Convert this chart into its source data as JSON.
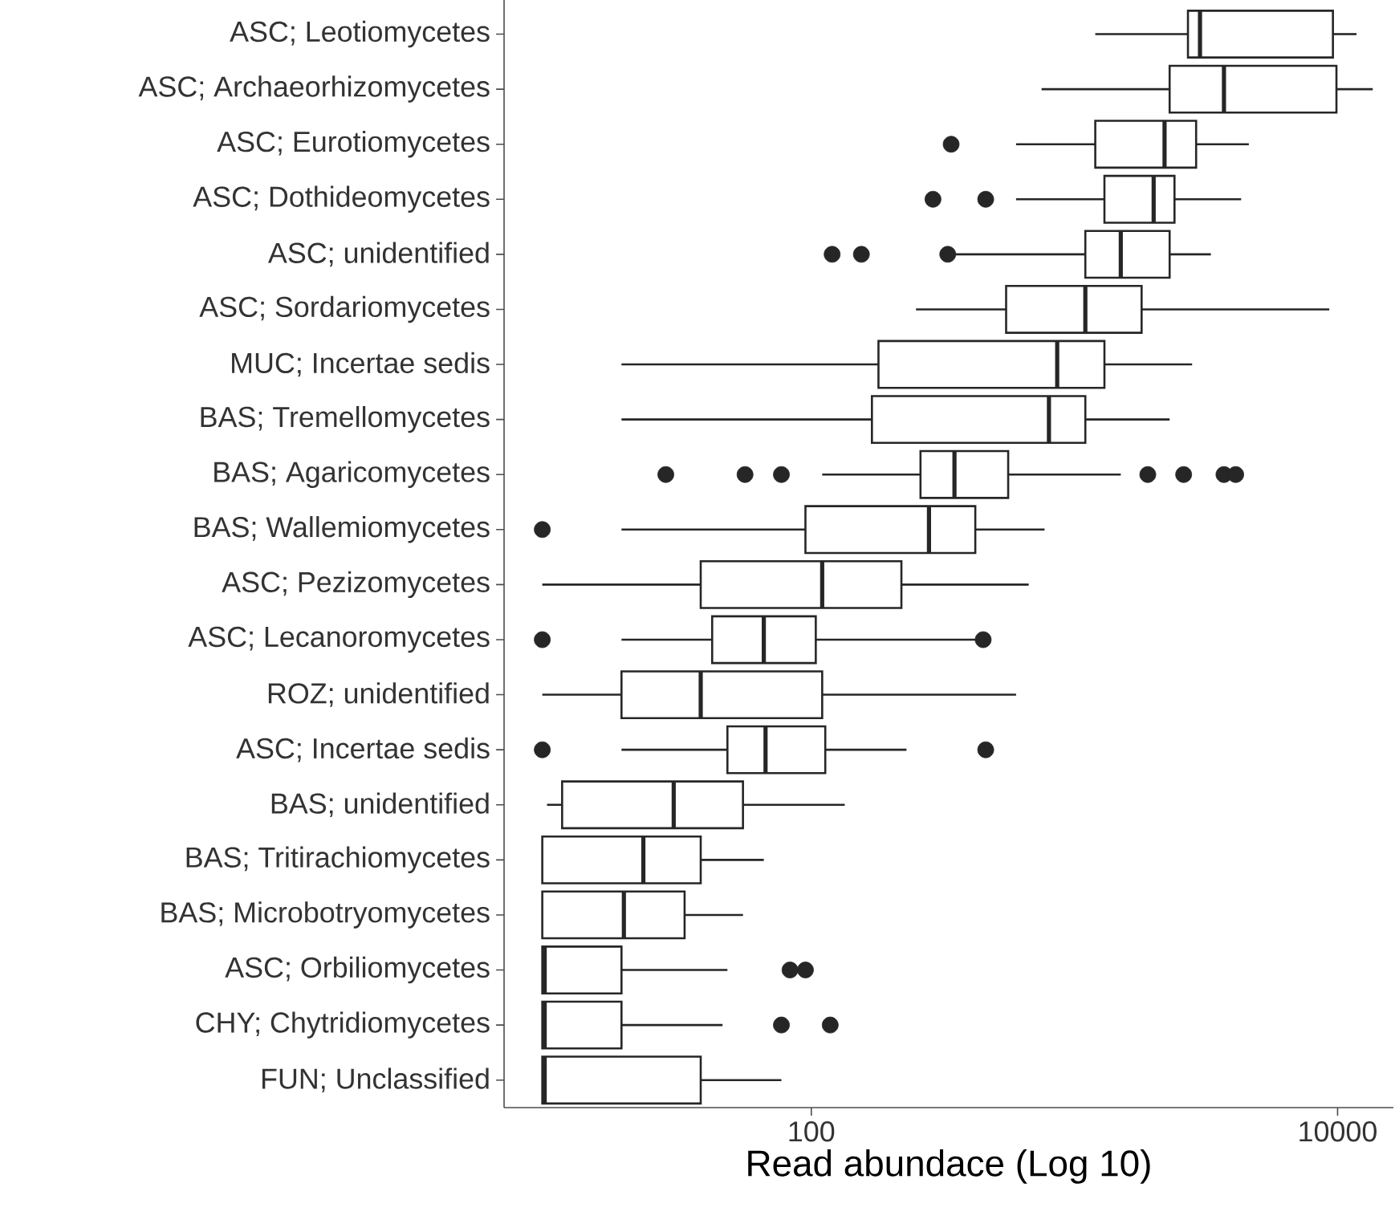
{
  "chart_data": {
    "type": "box",
    "orientation": "horizontal",
    "log": "x",
    "xlabel": "Read abundace (Log 10)",
    "xlim": [
      6.8,
      16300
    ],
    "xticks": [
      100,
      10000
    ],
    "categories": [
      "ASC; Leotiomycetes",
      "ASC; Archaeorhizomycetes",
      "ASC; Eurotiomycetes",
      "ASC; Dothideomycetes",
      "ASC; unidentified",
      "ASC; Sordariomycetes",
      "MUC; Incertae sedis",
      "BAS; Tremellomycetes",
      "BAS; Agaricomycetes",
      "BAS; Wallemiomycetes",
      "ASC; Pezizomycetes",
      "ASC; Lecanoromycetes",
      "ROZ; unidentified",
      "ASC; Incertae sedis",
      "BAS; unidentified",
      "BAS; Tritirachiomycetes",
      "BAS; Microbotryomycetes",
      "ASC; Orbiliomycetes",
      "CHY; Chytridiomycetes",
      "FUN; Unclassified"
    ],
    "boxes": [
      {
        "low": 1200,
        "q1": 2700,
        "median": 3000,
        "q3": 9600,
        "high": 11800
      },
      {
        "low": 750,
        "q1": 2300,
        "median": 3700,
        "q3": 9900,
        "high": 13600
      },
      {
        "low": 600,
        "q1": 1200,
        "median": 2200,
        "q3": 2900,
        "high": 4600,
        "outliers": [
          340
        ]
      },
      {
        "low": 600,
        "q1": 1300,
        "median": 2000,
        "q3": 2400,
        "high": 4300,
        "outliers": [
          290,
          460
        ]
      },
      {
        "low": 350,
        "q1": 1100,
        "median": 1500,
        "q3": 2300,
        "high": 3300,
        "outliers": [
          120,
          155,
          330
        ]
      },
      {
        "low": 250,
        "q1": 550,
        "median": 1100,
        "q3": 1800,
        "high": 9300
      },
      {
        "low": 19,
        "q1": 180,
        "median": 860,
        "q3": 1300,
        "high": 2800
      },
      {
        "low": 19,
        "q1": 170,
        "median": 800,
        "q3": 1100,
        "high": 2300
      },
      {
        "low": 110,
        "q1": 260,
        "median": 350,
        "q3": 560,
        "high": 1500,
        "outliers": [
          28,
          56,
          77,
          1900,
          2600,
          3700,
          4100
        ]
      },
      {
        "low": 19,
        "q1": 95,
        "median": 280,
        "q3": 420,
        "high": 770,
        "outliers": [
          9.5
        ]
      },
      {
        "low": 9.5,
        "q1": 38,
        "median": 110,
        "q3": 220,
        "high": 670
      },
      {
        "low": 19,
        "q1": 42,
        "median": 66,
        "q3": 104,
        "high": 420,
        "outliers": [
          9.5,
          450
        ]
      },
      {
        "low": 9.5,
        "q1": 19,
        "median": 38,
        "q3": 110,
        "high": 600
      },
      {
        "low": 19,
        "q1": 48,
        "median": 67,
        "q3": 113,
        "high": 230,
        "outliers": [
          9.5,
          460
        ]
      },
      {
        "low": 9.9,
        "q1": 11.3,
        "median": 30,
        "q3": 55,
        "high": 134
      },
      {
        "low": 9.5,
        "q1": 9.5,
        "median": 23,
        "q3": 38,
        "high": 66
      },
      {
        "low": 9.5,
        "q1": 9.5,
        "median": 19.4,
        "q3": 33,
        "high": 55
      },
      {
        "low": 9.5,
        "q1": 9.5,
        "median": 9.7,
        "q3": 19,
        "high": 48,
        "outliers": [
          83,
          95
        ]
      },
      {
        "low": 9.5,
        "q1": 9.5,
        "median": 9.7,
        "q3": 19,
        "high": 46,
        "outliers": [
          77,
          118
        ]
      },
      {
        "low": 9.5,
        "q1": 9.5,
        "median": 9.7,
        "q3": 38,
        "high": 77
      }
    ]
  }
}
